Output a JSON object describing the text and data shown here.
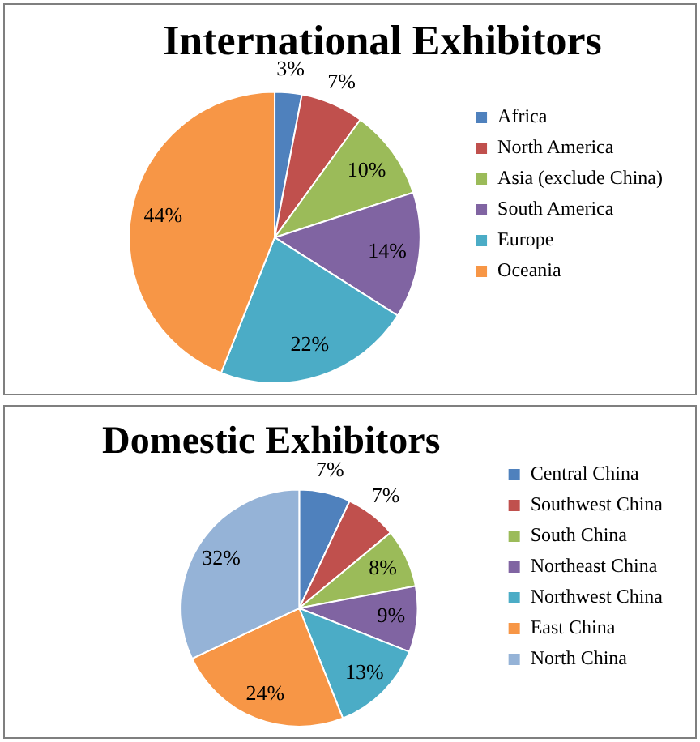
{
  "chart_data": [
    {
      "type": "pie",
      "title": "International Exhibitors",
      "categories": [
        "Africa",
        "North America",
        "Asia (exclude China)",
        "South America",
        "Europe",
        "Oceania"
      ],
      "values": [
        3,
        7,
        10,
        14,
        22,
        44
      ],
      "value_labels": [
        "3%",
        "7%",
        "10%",
        "14%",
        "22%",
        "44%"
      ],
      "colors": [
        "#4f81bd",
        "#c0504d",
        "#9bbb59",
        "#8064a2",
        "#4bacc6",
        "#f79646"
      ],
      "legend": "right"
    },
    {
      "type": "pie",
      "title": "Domestic Exhibitors",
      "categories": [
        "Central China",
        "Southwest China",
        "South China",
        "Northeast China",
        "Northwest China",
        "East China",
        "North China"
      ],
      "values": [
        7,
        7,
        8,
        9,
        13,
        24,
        32
      ],
      "value_labels": [
        "7%",
        "7%",
        "8%",
        "9%",
        "13%",
        "24%",
        "32%"
      ],
      "colors": [
        "#4f81bd",
        "#c0504d",
        "#9bbb59",
        "#8064a2",
        "#4bacc6",
        "#f79646",
        "#95b3d7"
      ],
      "legend": "right"
    }
  ]
}
